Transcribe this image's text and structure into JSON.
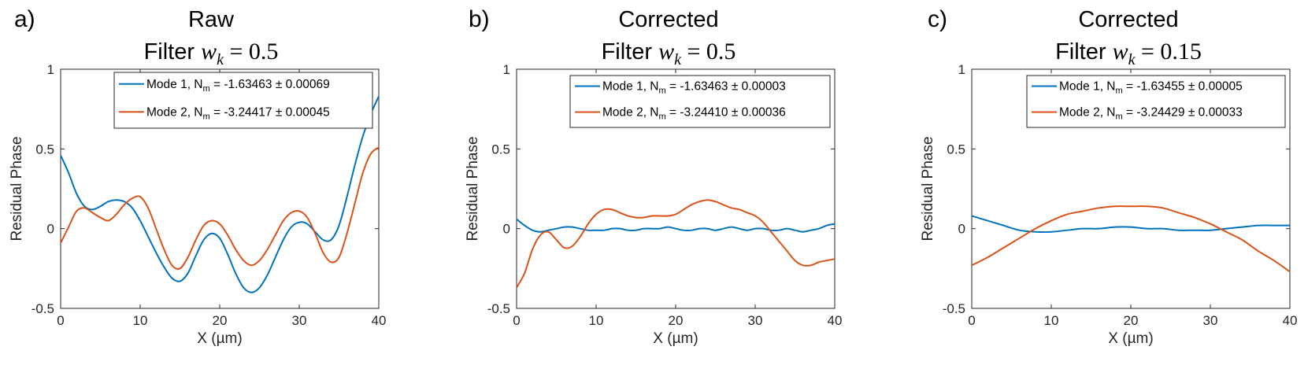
{
  "colors": {
    "mode1": "#0072BD",
    "mode2": "#D95319",
    "axis": "#262626"
  },
  "panels": [
    {
      "letter": "a)",
      "title": "Raw",
      "filter_prefix": "Filter",
      "filter_var": "w",
      "filter_sub": "k",
      "filter_value": "= 0.5",
      "legend": [
        {
          "prefix": "Mode 1, N",
          "sub": "m",
          "value": " = -1.63463 ± 0.00069"
        },
        {
          "prefix": "Mode 2, N",
          "sub": "m",
          "value": " = -3.24417 ± 0.00045"
        }
      ]
    },
    {
      "letter": "b)",
      "title": "Corrected",
      "filter_prefix": "Filter",
      "filter_var": "w",
      "filter_sub": "k",
      "filter_value": "= 0.5",
      "legend": [
        {
          "prefix": "Mode 1, N",
          "sub": "m",
          "value": " = -1.63463 ± 0.00003"
        },
        {
          "prefix": "Mode 2, N",
          "sub": "m",
          "value": " = -3.24410 ± 0.00036"
        }
      ]
    },
    {
      "letter": "c)",
      "title": "Corrected",
      "filter_prefix": "Filter",
      "filter_var": "w",
      "filter_sub": "k",
      "filter_value": "= 0.15",
      "legend": [
        {
          "prefix": "Mode 1, N",
          "sub": "m",
          "value": " = -1.63455 ± 0.00005"
        },
        {
          "prefix": "Mode 2, N",
          "sub": "m",
          "value": " = -3.24429 ± 0.00033"
        }
      ]
    }
  ],
  "chart_data": [
    {
      "type": "line",
      "title": "Raw",
      "xlabel": "X (µm)",
      "ylabel": "Residual Phase",
      "xlim": [
        0,
        40
      ],
      "ylim": [
        -0.5,
        1
      ],
      "xticks": [
        0,
        10,
        20,
        30,
        40
      ],
      "yticks": [
        -0.5,
        0,
        0.5,
        1
      ],
      "ytick_labels": [
        "-0.5",
        "0",
        "0.5",
        "1"
      ],
      "legend_position": "top-right",
      "series": [
        {
          "name": "Mode 1, Nm = -1.63463 ± 0.00069",
          "color": "#0072BD",
          "x": [
            0,
            1,
            2,
            3,
            4,
            5,
            6,
            7,
            8,
            9,
            10,
            11,
            12,
            13,
            14,
            15,
            16,
            17,
            18,
            19,
            20,
            21,
            22,
            23,
            24,
            25,
            26,
            27,
            28,
            29,
            30,
            31,
            32,
            33,
            34,
            35,
            36,
            37,
            38,
            39,
            40
          ],
          "y": [
            0.46,
            0.35,
            0.22,
            0.14,
            0.12,
            0.14,
            0.17,
            0.18,
            0.17,
            0.13,
            0.05,
            -0.05,
            -0.15,
            -0.24,
            -0.31,
            -0.33,
            -0.28,
            -0.17,
            -0.07,
            -0.03,
            -0.06,
            -0.16,
            -0.28,
            -0.37,
            -0.4,
            -0.37,
            -0.29,
            -0.18,
            -0.07,
            0.01,
            0.04,
            0.03,
            -0.02,
            -0.07,
            -0.07,
            0.02,
            0.2,
            0.4,
            0.58,
            0.72,
            0.83
          ]
        },
        {
          "name": "Mode 2, Nm = -3.24417 ± 0.00045",
          "color": "#D95319",
          "x": [
            0,
            1,
            2,
            3,
            4,
            5,
            6,
            7,
            8,
            9,
            10,
            11,
            12,
            13,
            14,
            15,
            16,
            17,
            18,
            19,
            20,
            21,
            22,
            23,
            24,
            25,
            26,
            27,
            28,
            29,
            30,
            31,
            32,
            33,
            34,
            35,
            36,
            37,
            38,
            39,
            40
          ],
          "y": [
            -0.09,
            0.01,
            0.11,
            0.13,
            0.1,
            0.07,
            0.05,
            0.09,
            0.15,
            0.19,
            0.2,
            0.13,
            0.0,
            -0.13,
            -0.23,
            -0.25,
            -0.18,
            -0.07,
            0.02,
            0.05,
            0.03,
            -0.04,
            -0.13,
            -0.2,
            -0.23,
            -0.2,
            -0.13,
            -0.04,
            0.05,
            0.1,
            0.11,
            0.07,
            -0.03,
            -0.15,
            -0.21,
            -0.18,
            -0.03,
            0.16,
            0.35,
            0.47,
            0.51
          ]
        }
      ]
    },
    {
      "type": "line",
      "title": "Corrected",
      "xlabel": "X (µm)",
      "ylabel": "Residual Phase",
      "xlim": [
        0,
        40
      ],
      "ylim": [
        -0.5,
        1
      ],
      "xticks": [
        0,
        10,
        20,
        30,
        40
      ],
      "yticks": [
        -0.5,
        0,
        0.5,
        1
      ],
      "ytick_labels": [
        "-0.5",
        "0",
        "0.5",
        "1"
      ],
      "legend_position": "top-right",
      "series": [
        {
          "name": "Mode 1, Nm = -1.63463 ± 0.00003",
          "color": "#0072BD",
          "x": [
            0,
            1,
            2,
            3,
            4,
            5,
            6,
            7,
            8,
            9,
            10,
            11,
            12,
            13,
            14,
            15,
            16,
            17,
            18,
            19,
            20,
            21,
            22,
            23,
            24,
            25,
            26,
            27,
            28,
            29,
            30,
            31,
            32,
            33,
            34,
            35,
            36,
            37,
            38,
            39,
            40
          ],
          "y": [
            0.06,
            0.02,
            -0.01,
            -0.02,
            -0.01,
            0.0,
            0.01,
            0.01,
            0.0,
            -0.01,
            -0.01,
            -0.01,
            0.0,
            0.0,
            -0.01,
            -0.01,
            0.0,
            0.0,
            0.0,
            0.01,
            0.0,
            -0.01,
            -0.01,
            0.0,
            0.0,
            -0.01,
            0.0,
            0.01,
            0.0,
            -0.01,
            0.0,
            0.0,
            -0.01,
            -0.01,
            0.0,
            -0.01,
            -0.02,
            -0.01,
            0.0,
            0.02,
            0.03
          ]
        },
        {
          "name": "Mode 2, Nm = -3.24410 ± 0.00036",
          "color": "#D95319",
          "x": [
            0,
            1,
            2,
            3,
            4,
            5,
            6,
            7,
            8,
            9,
            10,
            11,
            12,
            13,
            14,
            15,
            16,
            17,
            18,
            19,
            20,
            21,
            22,
            23,
            24,
            25,
            26,
            27,
            28,
            29,
            30,
            31,
            32,
            33,
            34,
            35,
            36,
            37,
            38,
            39,
            40
          ],
          "y": [
            -0.37,
            -0.28,
            -0.13,
            -0.04,
            -0.02,
            -0.07,
            -0.12,
            -0.11,
            -0.05,
            0.03,
            0.09,
            0.12,
            0.12,
            0.1,
            0.08,
            0.07,
            0.07,
            0.08,
            0.08,
            0.08,
            0.09,
            0.12,
            0.15,
            0.17,
            0.18,
            0.17,
            0.15,
            0.13,
            0.12,
            0.1,
            0.08,
            0.04,
            -0.02,
            -0.08,
            -0.14,
            -0.2,
            -0.23,
            -0.23,
            -0.21,
            -0.2,
            -0.19
          ]
        }
      ]
    },
    {
      "type": "line",
      "title": "Corrected",
      "xlabel": "X (µm)",
      "ylabel": "Residual Phase",
      "xlim": [
        0,
        40
      ],
      "ylim": [
        -0.5,
        1
      ],
      "xticks": [
        0,
        10,
        20,
        30,
        40
      ],
      "yticks": [
        -0.5,
        0,
        0.5,
        1
      ],
      "ytick_labels": [
        "-0.5",
        "0",
        "0.5",
        "1"
      ],
      "legend_position": "top-right",
      "series": [
        {
          "name": "Mode 1, Nm = -1.63455 ± 0.00005",
          "color": "#0072BD",
          "x": [
            0,
            2,
            4,
            6,
            8,
            10,
            12,
            14,
            16,
            18,
            20,
            22,
            24,
            26,
            28,
            30,
            32,
            34,
            36,
            38,
            40
          ],
          "y": [
            0.08,
            0.05,
            0.02,
            -0.01,
            -0.02,
            -0.02,
            -0.01,
            0.0,
            0.0,
            0.01,
            0.01,
            0.0,
            0.0,
            -0.01,
            -0.01,
            -0.01,
            0.0,
            0.01,
            0.02,
            0.02,
            0.02
          ]
        },
        {
          "name": "Mode 2, Nm = -3.24429 ± 0.00033",
          "color": "#D95319",
          "x": [
            0,
            2,
            4,
            6,
            8,
            10,
            12,
            14,
            16,
            18,
            20,
            22,
            24,
            26,
            28,
            30,
            32,
            34,
            36,
            38,
            40
          ],
          "y": [
            -0.23,
            -0.18,
            -0.12,
            -0.06,
            0.0,
            0.05,
            0.09,
            0.11,
            0.13,
            0.14,
            0.14,
            0.14,
            0.13,
            0.1,
            0.07,
            0.03,
            -0.02,
            -0.07,
            -0.14,
            -0.2,
            -0.27
          ]
        }
      ]
    }
  ]
}
